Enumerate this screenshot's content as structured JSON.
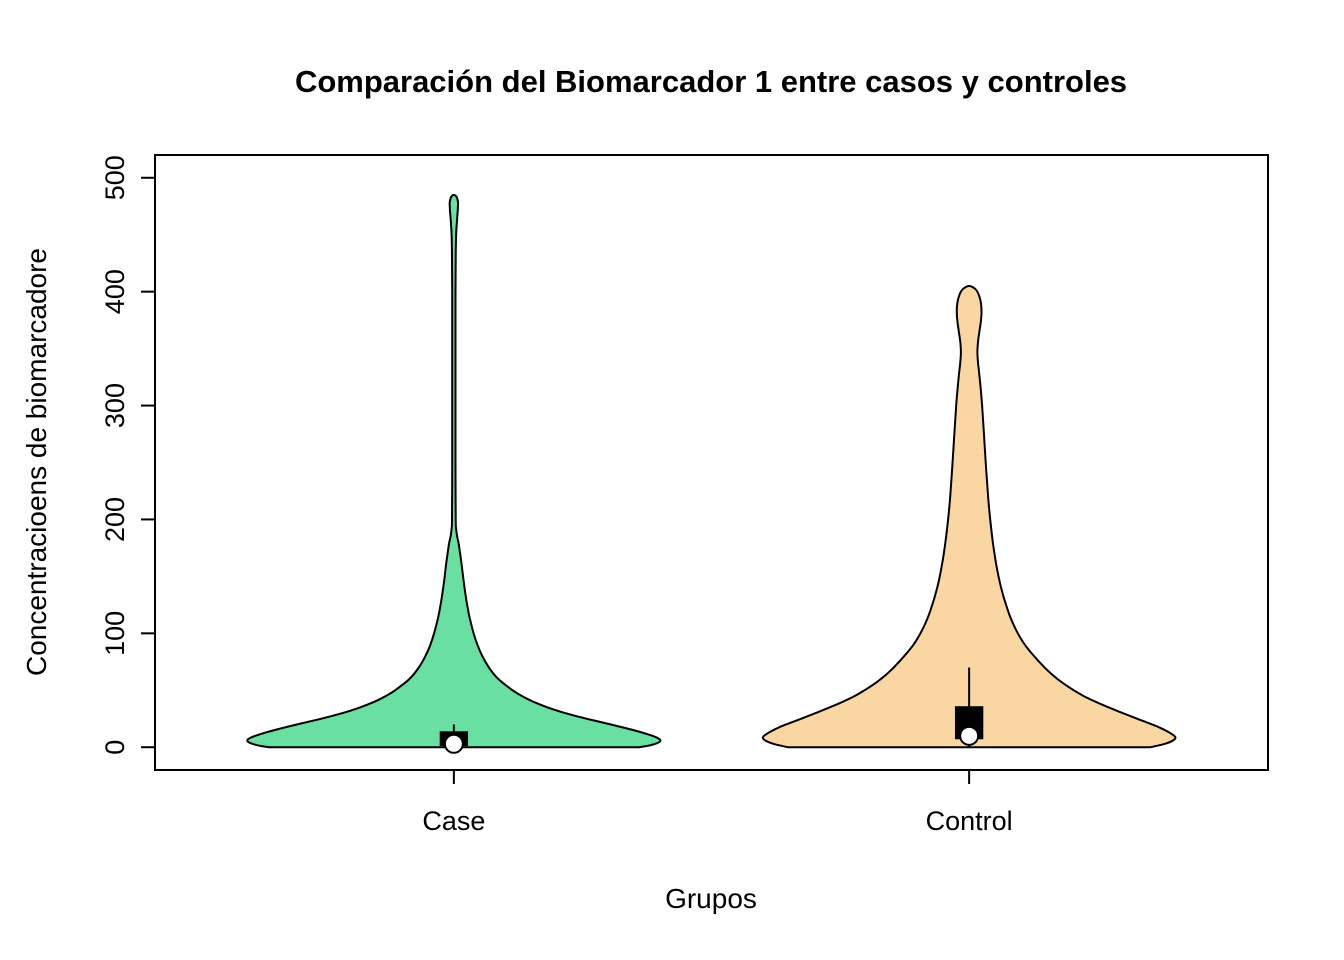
{
  "chart_data": {
    "type": "violin",
    "title": "Comparación del Biomarcador 1 entre casos y controles",
    "xlabel": "Grupos",
    "ylabel": "Concentracioens de biomarcadore",
    "categories": [
      "Case",
      "Control"
    ],
    "ylim": [
      0,
      500
    ],
    "yticks": [
      0,
      100,
      200,
      300,
      400,
      500
    ],
    "grid": false,
    "legend": "none",
    "outline_color": "#000000",
    "series": [
      {
        "name": "Case",
        "fill": "#69e0a2",
        "value_range": [
          0,
          485
        ],
        "profile": [
          [
            0,
            0.9
          ],
          [
            2,
            0.96
          ],
          [
            5,
            1.0
          ],
          [
            8,
            0.99
          ],
          [
            12,
            0.93
          ],
          [
            16,
            0.85
          ],
          [
            20,
            0.76
          ],
          [
            25,
            0.645
          ],
          [
            30,
            0.54
          ],
          [
            35,
            0.455
          ],
          [
            40,
            0.385
          ],
          [
            45,
            0.33
          ],
          [
            50,
            0.285
          ],
          [
            60,
            0.215
          ],
          [
            70,
            0.17
          ],
          [
            80,
            0.138
          ],
          [
            90,
            0.114
          ],
          [
            100,
            0.096
          ],
          [
            115,
            0.075
          ],
          [
            130,
            0.06
          ],
          [
            145,
            0.048
          ],
          [
            160,
            0.038
          ],
          [
            172,
            0.029
          ],
          [
            180,
            0.022
          ],
          [
            186,
            0.015
          ],
          [
            192,
            0.011
          ],
          [
            200,
            0.009
          ],
          [
            250,
            0.008
          ],
          [
            300,
            0.008
          ],
          [
            350,
            0.008
          ],
          [
            400,
            0.008
          ],
          [
            430,
            0.009
          ],
          [
            450,
            0.011
          ],
          [
            462,
            0.015
          ],
          [
            472,
            0.019
          ],
          [
            478,
            0.02
          ],
          [
            482,
            0.016
          ],
          [
            484,
            0.01
          ],
          [
            485,
            0.0
          ]
        ],
        "box": {
          "whisker_low": 0,
          "q1": 1,
          "median": 3,
          "q3": 14,
          "whisker_high": 20
        }
      },
      {
        "name": "Control",
        "fill": "#fad7a2",
        "value_range": [
          0,
          405
        ],
        "profile": [
          [
            0,
            0.88
          ],
          [
            3,
            0.95
          ],
          [
            6,
            0.99
          ],
          [
            9,
            1.0
          ],
          [
            13,
            0.97
          ],
          [
            18,
            0.915
          ],
          [
            24,
            0.83
          ],
          [
            30,
            0.745
          ],
          [
            37,
            0.65
          ],
          [
            45,
            0.555
          ],
          [
            55,
            0.465
          ],
          [
            65,
            0.395
          ],
          [
            75,
            0.34
          ],
          [
            90,
            0.27
          ],
          [
            105,
            0.222
          ],
          [
            120,
            0.188
          ],
          [
            140,
            0.155
          ],
          [
            160,
            0.132
          ],
          [
            180,
            0.115
          ],
          [
            200,
            0.102
          ],
          [
            220,
            0.092
          ],
          [
            240,
            0.084
          ],
          [
            260,
            0.077
          ],
          [
            280,
            0.07
          ],
          [
            300,
            0.063
          ],
          [
            315,
            0.056
          ],
          [
            328,
            0.049
          ],
          [
            338,
            0.043
          ],
          [
            347,
            0.04
          ],
          [
            356,
            0.043
          ],
          [
            365,
            0.05
          ],
          [
            374,
            0.057
          ],
          [
            382,
            0.06
          ],
          [
            389,
            0.058
          ],
          [
            395,
            0.051
          ],
          [
            400,
            0.04
          ],
          [
            403,
            0.026
          ],
          [
            405,
            0.0
          ]
        ],
        "box": {
          "whisker_low": 0,
          "q1": 7,
          "median": 10,
          "q3": 36,
          "whisker_high": 70
        }
      }
    ]
  }
}
